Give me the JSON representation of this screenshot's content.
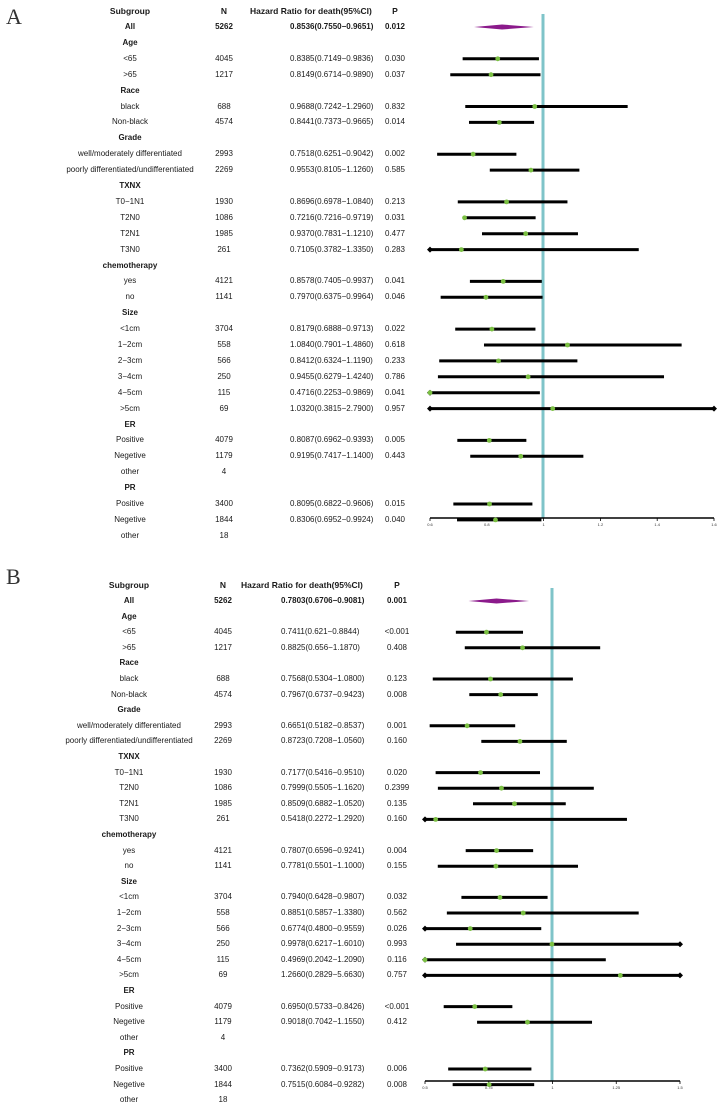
{
  "chart_data": [
    {
      "panel": "A",
      "type": "forest",
      "headers": {
        "subgroup": "Subgroup",
        "n": "N",
        "hr": "Hazard Ratio for  death(95%CI)",
        "p": "P"
      },
      "axis": {
        "xlim": [
          0.6,
          1.6
        ],
        "ref_line": 1.0,
        "ticks": [
          "0.6",
          "0.8",
          "1",
          "1.2",
          "1.4",
          "1.6"
        ],
        "tick_values": [
          0.6,
          0.8,
          1.0,
          1.2,
          1.4,
          1.6
        ]
      },
      "rows": [
        {
          "kind": "overall",
          "label": "All",
          "n": "5262",
          "hr_text": "0.8536(0.7550−0.9651)",
          "p": "0.012",
          "hr": 0.8536,
          "lo": 0.755,
          "hi": 0.9651
        },
        {
          "kind": "group",
          "label": "Age"
        },
        {
          "kind": "item",
          "label": "<65",
          "n": "4045",
          "hr_text": "0.8385(0.7149−0.9836)",
          "p": "0.030",
          "hr": 0.8385,
          "lo": 0.7149,
          "hi": 0.9836
        },
        {
          "kind": "item",
          "label": ">65",
          "n": "1217",
          "hr_text": "0.8149(0.6714−0.9890)",
          "p": "0.037",
          "hr": 0.8149,
          "lo": 0.6714,
          "hi": 0.989
        },
        {
          "kind": "group",
          "label": "Race"
        },
        {
          "kind": "item",
          "label": "black",
          "n": "688",
          "hr_text": "0.9688(0.7242−1.2960)",
          "p": "0.832",
          "hr": 0.9688,
          "lo": 0.7242,
          "hi": 1.296
        },
        {
          "kind": "item",
          "label": "Non-black",
          "n": "4574",
          "hr_text": "0.8441(0.7373−0.9665)",
          "p": "0.014",
          "hr": 0.8441,
          "lo": 0.7373,
          "hi": 0.9665
        },
        {
          "kind": "group",
          "label": "Grade"
        },
        {
          "kind": "item",
          "label": "well/moderately differentiated",
          "n": "2993",
          "hr_text": "0.7518(0.6251−0.9042)",
          "p": "0.002",
          "hr": 0.7518,
          "lo": 0.6251,
          "hi": 0.9042
        },
        {
          "kind": "item",
          "label": "poorly differentiated/undifferentiated",
          "n": "2269",
          "hr_text": "0.9553(0.8105−1.1260)",
          "p": "0.585",
          "hr": 0.9553,
          "lo": 0.8105,
          "hi": 1.126
        },
        {
          "kind": "group",
          "label": "TXNX"
        },
        {
          "kind": "item",
          "label": "T0−1N1",
          "n": "1930",
          "hr_text": "0.8696(0.6978−1.0840)",
          "p": "0.213",
          "hr": 0.8696,
          "lo": 0.6978,
          "hi": 1.084
        },
        {
          "kind": "item",
          "label": "T2N0",
          "n": "1086",
          "hr_text": "0.7216(0.7216−0.9719)",
          "p": "0.031",
          "hr": 0.7216,
          "lo": 0.7216,
          "hi": 0.9719
        },
        {
          "kind": "item",
          "label": "T2N1",
          "n": "1985",
          "hr_text": "0.9370(0.7831−1.1210)",
          "p": "0.477",
          "hr": 0.937,
          "lo": 0.7831,
          "hi": 1.121
        },
        {
          "kind": "item",
          "label": "T3N0",
          "n": "261",
          "hr_text": "0.7105(0.3782−1.3350)",
          "p": "0.283",
          "hr": 0.7105,
          "lo": 0.3782,
          "hi": 1.335
        },
        {
          "kind": "group",
          "label": "chemotherapy"
        },
        {
          "kind": "item",
          "label": "yes",
          "n": "4121",
          "hr_text": "0.8578(0.7405−0.9937)",
          "p": "0.041",
          "hr": 0.8578,
          "lo": 0.7405,
          "hi": 0.9937
        },
        {
          "kind": "item",
          "label": "no",
          "n": "1141",
          "hr_text": "0.7970(0.6375−0.9964)",
          "p": "0.046",
          "hr": 0.797,
          "lo": 0.6375,
          "hi": 0.9964
        },
        {
          "kind": "group",
          "label": "Size"
        },
        {
          "kind": "item",
          "label": "<1cm",
          "n": "3704",
          "hr_text": "0.8179(0.6888−0.9713)",
          "p": "0.022",
          "hr": 0.8179,
          "lo": 0.6888,
          "hi": 0.9713
        },
        {
          "kind": "item",
          "label": "1−2cm",
          "n": "558",
          "hr_text": "1.0840(0.7901−1.4860)",
          "p": "0.618",
          "hr": 1.084,
          "lo": 0.7901,
          "hi": 1.486
        },
        {
          "kind": "item",
          "label": "2−3cm",
          "n": "566",
          "hr_text": "0.8412(0.6324−1.1190)",
          "p": "0.233",
          "hr": 0.8412,
          "lo": 0.6324,
          "hi": 1.119
        },
        {
          "kind": "item",
          "label": "3−4cm",
          "n": "250",
          "hr_text": "0.9455(0.6279−1.4240)",
          "p": "0.786",
          "hr": 0.9455,
          "lo": 0.6279,
          "hi": 1.424
        },
        {
          "kind": "item",
          "label": "4−5cm",
          "n": "115",
          "hr_text": "0.4716(0.2253−0.9869)",
          "p": "0.041",
          "hr": 0.4716,
          "lo": 0.2253,
          "hi": 0.9869
        },
        {
          "kind": "item",
          "label": ">5cm",
          "n": "69",
          "hr_text": "1.0320(0.3815−2.7900)",
          "p": "0.957",
          "hr": 1.032,
          "lo": 0.3815,
          "hi": 2.79
        },
        {
          "kind": "group",
          "label": "ER"
        },
        {
          "kind": "item",
          "label": "Positive",
          "n": "4079",
          "hr_text": "0.8087(0.6962−0.9393)",
          "p": "0.005",
          "hr": 0.8087,
          "lo": 0.6962,
          "hi": 0.9393
        },
        {
          "kind": "item",
          "label": "Negetive",
          "n": "1179",
          "hr_text": "0.9195(0.7417−1.1400)",
          "p": "0.443",
          "hr": 0.9195,
          "lo": 0.7417,
          "hi": 1.14
        },
        {
          "kind": "item",
          "label": "other",
          "n": "4"
        },
        {
          "kind": "group",
          "label": "PR"
        },
        {
          "kind": "item",
          "label": "Positive",
          "n": "3400",
          "hr_text": "0.8095(0.6822−0.9606)",
          "p": "0.015",
          "hr": 0.8095,
          "lo": 0.6822,
          "hi": 0.9606
        },
        {
          "kind": "item",
          "label": "Negetive",
          "n": "1844",
          "hr_text": "0.8306(0.6952−0.9924)",
          "p": "0.040",
          "hr": 0.8306,
          "lo": 0.6952,
          "hi": 0.9924
        },
        {
          "kind": "item",
          "label": "other",
          "n": "18"
        }
      ]
    },
    {
      "panel": "B",
      "type": "forest",
      "headers": {
        "subgroup": "Subgroup",
        "n": "N",
        "hr": "Hazard Ratio for  death(95%CI)",
        "p": "P"
      },
      "axis": {
        "xlim": [
          0.5,
          1.5
        ],
        "ref_line": 1.0,
        "ticks": [
          "0.5",
          "0.75",
          "1",
          "1.25",
          "1.5"
        ],
        "tick_values": [
          0.5,
          0.75,
          1.0,
          1.25,
          1.5
        ]
      },
      "rows": [
        {
          "kind": "overall",
          "label": "All",
          "n": "5262",
          "hr_text": "0.7803(0.6706−0.9081)",
          "p": "0.001",
          "hr": 0.7803,
          "lo": 0.6706,
          "hi": 0.9081
        },
        {
          "kind": "group",
          "label": "Age"
        },
        {
          "kind": "item",
          "label": "<65",
          "n": "4045",
          "hr_text": "0.7411(0.621−0.8844)",
          "p": "<0.001",
          "hr": 0.7411,
          "lo": 0.621,
          "hi": 0.8844
        },
        {
          "kind": "item",
          "label": ">65",
          "n": "1217",
          "hr_text": "0.8825(0.656−1.1870)",
          "p": "0.408",
          "hr": 0.8825,
          "lo": 0.656,
          "hi": 1.187
        },
        {
          "kind": "group",
          "label": "Race"
        },
        {
          "kind": "item",
          "label": "black",
          "n": "688",
          "hr_text": "0.7568(0.5304−1.0800)",
          "p": "0.123",
          "hr": 0.7568,
          "lo": 0.5304,
          "hi": 1.08
        },
        {
          "kind": "item",
          "label": "Non-black",
          "n": "4574",
          "hr_text": "0.7967(0.6737−0.9423)",
          "p": "0.008",
          "hr": 0.7967,
          "lo": 0.6737,
          "hi": 0.9423
        },
        {
          "kind": "group",
          "label": "Grade"
        },
        {
          "kind": "item",
          "label": "well/moderately differentiated",
          "n": "2993",
          "hr_text": "0.6651(0.5182−0.8537)",
          "p": "0.001",
          "hr": 0.6651,
          "lo": 0.5182,
          "hi": 0.8537
        },
        {
          "kind": "item",
          "label": "poorly differentiated/undifferentiated",
          "n": "2269",
          "hr_text": "0.8723(0.7208−1.0560)",
          "p": "0.160",
          "hr": 0.8723,
          "lo": 0.7208,
          "hi": 1.056
        },
        {
          "kind": "group",
          "label": "TXNX"
        },
        {
          "kind": "item",
          "label": "T0−1N1",
          "n": "1930",
          "hr_text": "0.7177(0.5416−0.9510)",
          "p": "0.020",
          "hr": 0.7177,
          "lo": 0.5416,
          "hi": 0.951
        },
        {
          "kind": "item",
          "label": "T2N0",
          "n": "1086",
          "hr_text": "0.7999(0.5505−1.1620)",
          "p": "0.2399",
          "hr": 0.7999,
          "lo": 0.5505,
          "hi": 1.162
        },
        {
          "kind": "item",
          "label": "T2N1",
          "n": "1985",
          "hr_text": "0.8509(0.6882−1.0520)",
          "p": "0.135",
          "hr": 0.8509,
          "lo": 0.6882,
          "hi": 1.052
        },
        {
          "kind": "item",
          "label": "T3N0",
          "n": "261",
          "hr_text": "0.5418(0.2272−1.2920)",
          "p": "0.160",
          "hr": 0.5418,
          "lo": 0.2272,
          "hi": 1.292
        },
        {
          "kind": "group",
          "label": "chemotherapy"
        },
        {
          "kind": "item",
          "label": "yes",
          "n": "4121",
          "hr_text": "0.7807(0.6596−0.9241)",
          "p": "0.004",
          "hr": 0.7807,
          "lo": 0.6596,
          "hi": 0.9241
        },
        {
          "kind": "item",
          "label": "no",
          "n": "1141",
          "hr_text": "0.7781(0.5501−1.1000)",
          "p": "0.155",
          "hr": 0.7781,
          "lo": 0.5501,
          "hi": 1.1
        },
        {
          "kind": "group",
          "label": "Size"
        },
        {
          "kind": "item",
          "label": "<1cm",
          "n": "3704",
          "hr_text": "0.7940(0.6428−0.9807)",
          "p": "0.032",
          "hr": 0.794,
          "lo": 0.6428,
          "hi": 0.9807
        },
        {
          "kind": "item",
          "label": "1−2cm",
          "n": "558",
          "hr_text": "0.8851(0.5857−1.3380)",
          "p": "0.562",
          "hr": 0.8851,
          "lo": 0.5857,
          "hi": 1.338
        },
        {
          "kind": "item",
          "label": "2−3cm",
          "n": "566",
          "hr_text": "0.6774(0.4800−0.9559)",
          "p": "0.026",
          "hr": 0.6774,
          "lo": 0.48,
          "hi": 0.9559
        },
        {
          "kind": "item",
          "label": "3−4cm",
          "n": "250",
          "hr_text": "0.9978(0.6217−1.6010)",
          "p": "0.993",
          "hr": 0.9978,
          "lo": 0.6217,
          "hi": 1.601
        },
        {
          "kind": "item",
          "label": "4−5cm",
          "n": "115",
          "hr_text": "0.4969(0.2042−1.2090)",
          "p": "0.116",
          "hr": 0.4969,
          "lo": 0.2042,
          "hi": 1.209
        },
        {
          "kind": "item",
          "label": ">5cm",
          "n": "69",
          "hr_text": "1.2660(0.2829−5.6630)",
          "p": "0.757",
          "hr": 1.266,
          "lo": 0.2829,
          "hi": 5.663
        },
        {
          "kind": "group",
          "label": "ER"
        },
        {
          "kind": "item",
          "label": "Positive",
          "n": "4079",
          "hr_text": "0.6950(0.5733−0.8426)",
          "p": "<0.001",
          "hr": 0.695,
          "lo": 0.5733,
          "hi": 0.8426
        },
        {
          "kind": "item",
          "label": "Negetive",
          "n": "1179",
          "hr_text": "0.9018(0.7042−1.1550)",
          "p": "0.412",
          "hr": 0.9018,
          "lo": 0.7042,
          "hi": 1.155
        },
        {
          "kind": "item",
          "label": "other",
          "n": "4"
        },
        {
          "kind": "group",
          "label": "PR"
        },
        {
          "kind": "item",
          "label": "Positive",
          "n": "3400",
          "hr_text": "0.7362(0.5909−0.9173)",
          "p": "0.006",
          "hr": 0.7362,
          "lo": 0.5909,
          "hi": 0.9173
        },
        {
          "kind": "item",
          "label": "Negetive",
          "n": "1844",
          "hr_text": "0.7515(0.6084−0.9282)",
          "p": "0.008",
          "hr": 0.7515,
          "lo": 0.6084,
          "hi": 0.9282
        },
        {
          "kind": "item",
          "label": "other",
          "n": "18"
        }
      ]
    }
  ],
  "colors": {
    "ref_line": "#7fc4c9",
    "point": "#7bc043",
    "diamond": "#8b1a8b",
    "bar": "#000000"
  }
}
